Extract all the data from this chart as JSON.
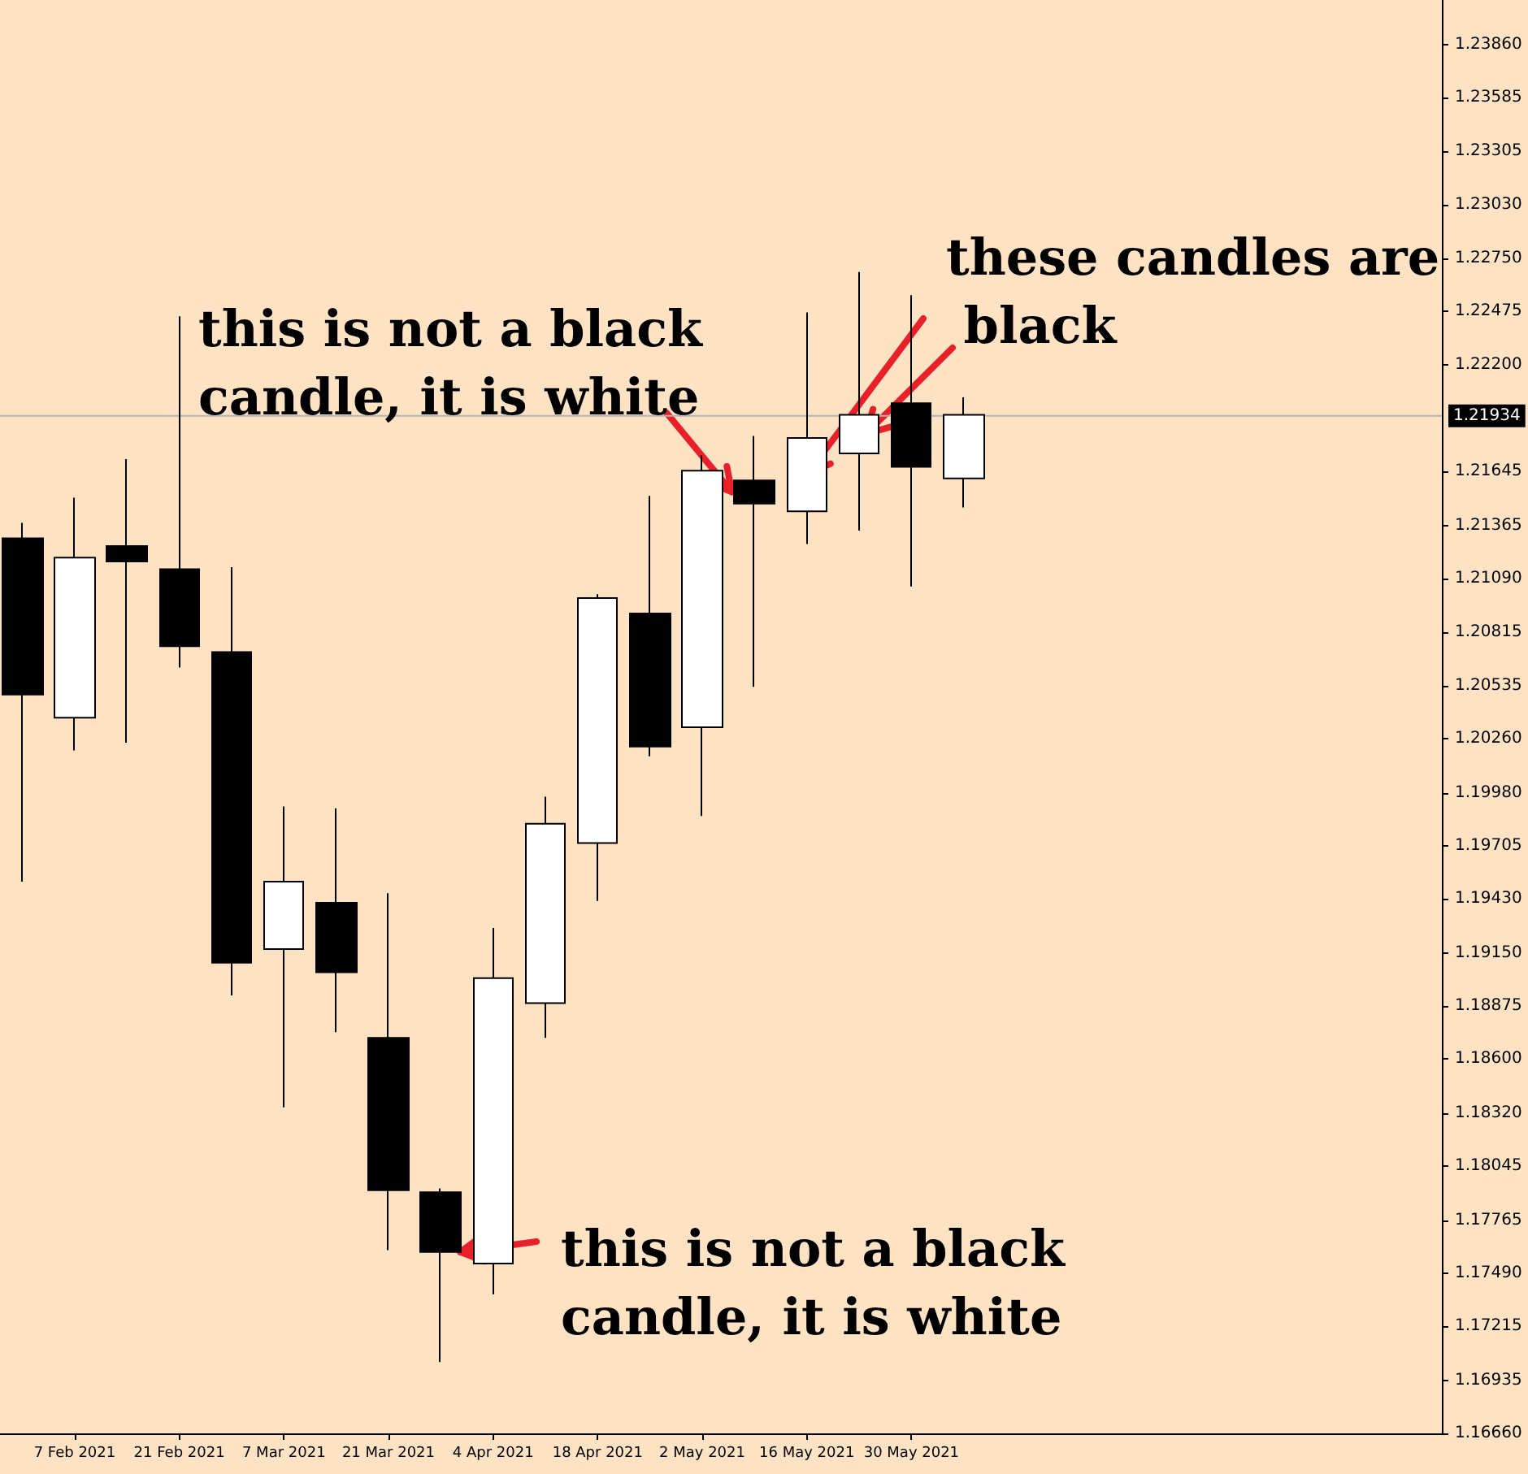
{
  "chart_data": {
    "type": "candlestick",
    "x": [
      "2021-01-31",
      "2021-02-07",
      "2021-02-14",
      "2021-02-21",
      "2021-02-28",
      "2021-03-07",
      "2021-03-14",
      "2021-03-21",
      "2021-03-28",
      "2021-04-04",
      "2021-04-11",
      "2021-04-18",
      "2021-04-25",
      "2021-05-02",
      "2021-05-09",
      "2021-05-16",
      "2021-05-23",
      "2021-05-30",
      "2021-06-06"
    ],
    "ohlc": [
      [
        1.213,
        1.2138,
        1.1952,
        1.2049
      ],
      [
        1.2037,
        1.2151,
        1.202,
        1.212
      ],
      [
        1.2126,
        1.2171,
        1.2024,
        1.2118
      ],
      [
        1.2114,
        1.2245,
        1.2063,
        1.2074
      ],
      [
        1.2071,
        1.2115,
        1.1893,
        1.191
      ],
      [
        1.1917,
        1.1991,
        1.1835,
        1.1952
      ],
      [
        1.1941,
        1.199,
        1.1874,
        1.1905
      ],
      [
        1.1871,
        1.1946,
        1.1761,
        1.1792
      ],
      [
        1.1791,
        1.1793,
        1.1703,
        1.176
      ],
      [
        1.1754,
        1.1928,
        1.1738,
        1.1902
      ],
      [
        1.1889,
        1.1996,
        1.1871,
        1.1982
      ],
      [
        1.1972,
        1.2101,
        1.1942,
        1.2099
      ],
      [
        1.2091,
        1.2152,
        1.2017,
        1.2022
      ],
      [
        1.2032,
        1.2173,
        1.1986,
        1.2165
      ],
      [
        1.216,
        1.2183,
        1.2053,
        1.2148
      ],
      [
        1.2144,
        1.2247,
        1.2127,
        1.2182
      ],
      [
        1.2174,
        1.2268,
        1.2134,
        1.2194
      ],
      [
        1.22,
        1.2256,
        1.2105,
        1.2167
      ],
      [
        1.2161,
        1.2203,
        1.2146,
        1.2194
      ]
    ],
    "colors": [
      "#000000",
      "#ffffff",
      "#000000",
      "#000000",
      "#000000",
      "#ffffff",
      "#000000",
      "#000000",
      "#000000",
      "#ffffff",
      "#ffffff",
      "#ffffff",
      "#000000",
      "#ffffff",
      "#000000",
      "#ffffff",
      "#ffffff",
      "#000000",
      "#ffffff"
    ],
    "xlim": [
      "2021-01-28",
      "2021-08-09"
    ],
    "xticks": [
      {
        "value": "2021-02-07",
        "label": "7 Feb 2021"
      },
      {
        "value": "2021-02-21",
        "label": "21 Feb 2021"
      },
      {
        "value": "2021-03-07",
        "label": "7 Mar 2021"
      },
      {
        "value": "2021-03-21",
        "label": "21 Mar 2021"
      },
      {
        "value": "2021-04-04",
        "label": "4 Apr 2021"
      },
      {
        "value": "2021-04-18",
        "label": "18 Apr 2021"
      },
      {
        "value": "2021-05-02",
        "label": "2 May 2021"
      },
      {
        "value": "2021-05-16",
        "label": "16 May 2021"
      },
      {
        "value": "2021-05-30",
        "label": "30 May 2021"
      }
    ],
    "ylim": [
      1.1666,
      1.2409
    ],
    "yticks": [
      {
        "value": 1.2386,
        "label": "1.23860"
      },
      {
        "value": 1.23585,
        "label": "1.23585"
      },
      {
        "value": 1.23305,
        "label": "1.23305"
      },
      {
        "value": 1.2303,
        "label": "1.23030"
      },
      {
        "value": 1.2275,
        "label": "1.22750"
      },
      {
        "value": 1.22475,
        "label": "1.22475"
      },
      {
        "value": 1.222,
        "label": "1.22200"
      },
      {
        "value": 1.21645,
        "label": "1.21645"
      },
      {
        "value": 1.21365,
        "label": "1.21365"
      },
      {
        "value": 1.2109,
        "label": "1.21090"
      },
      {
        "value": 1.20815,
        "label": "1.20815"
      },
      {
        "value": 1.20535,
        "label": "1.20535"
      },
      {
        "value": 1.2026,
        "label": "1.20260"
      },
      {
        "value": 1.1998,
        "label": "1.19980"
      },
      {
        "value": 1.19705,
        "label": "1.19705"
      },
      {
        "value": 1.1943,
        "label": "1.19430"
      },
      {
        "value": 1.1915,
        "label": "1.19150"
      },
      {
        "value": 1.18875,
        "label": "1.18875"
      },
      {
        "value": 1.186,
        "label": "1.18600"
      },
      {
        "value": 1.1832,
        "label": "1.18320"
      },
      {
        "value": 1.18045,
        "label": "1.18045"
      },
      {
        "value": 1.17765,
        "label": "1.17765"
      },
      {
        "value": 1.1749,
        "label": "1.17490"
      },
      {
        "value": 1.17215,
        "label": "1.17215"
      },
      {
        "value": 1.16935,
        "label": "1.16935"
      },
      {
        "value": 1.1666,
        "label": "1.16660"
      }
    ],
    "ref_lines": [
      {
        "axis": "y",
        "value": 1.21934,
        "label": "1.21934",
        "color": "#b4b4b4"
      }
    ],
    "annotations": [
      "this is not a black candle, it is white",
      {
        "text": "this is not a black candle, it is white",
        "x": "2021-03-28",
        "y": 1.176
      },
      "these candles are black"
    ],
    "grid": false
  }
}
